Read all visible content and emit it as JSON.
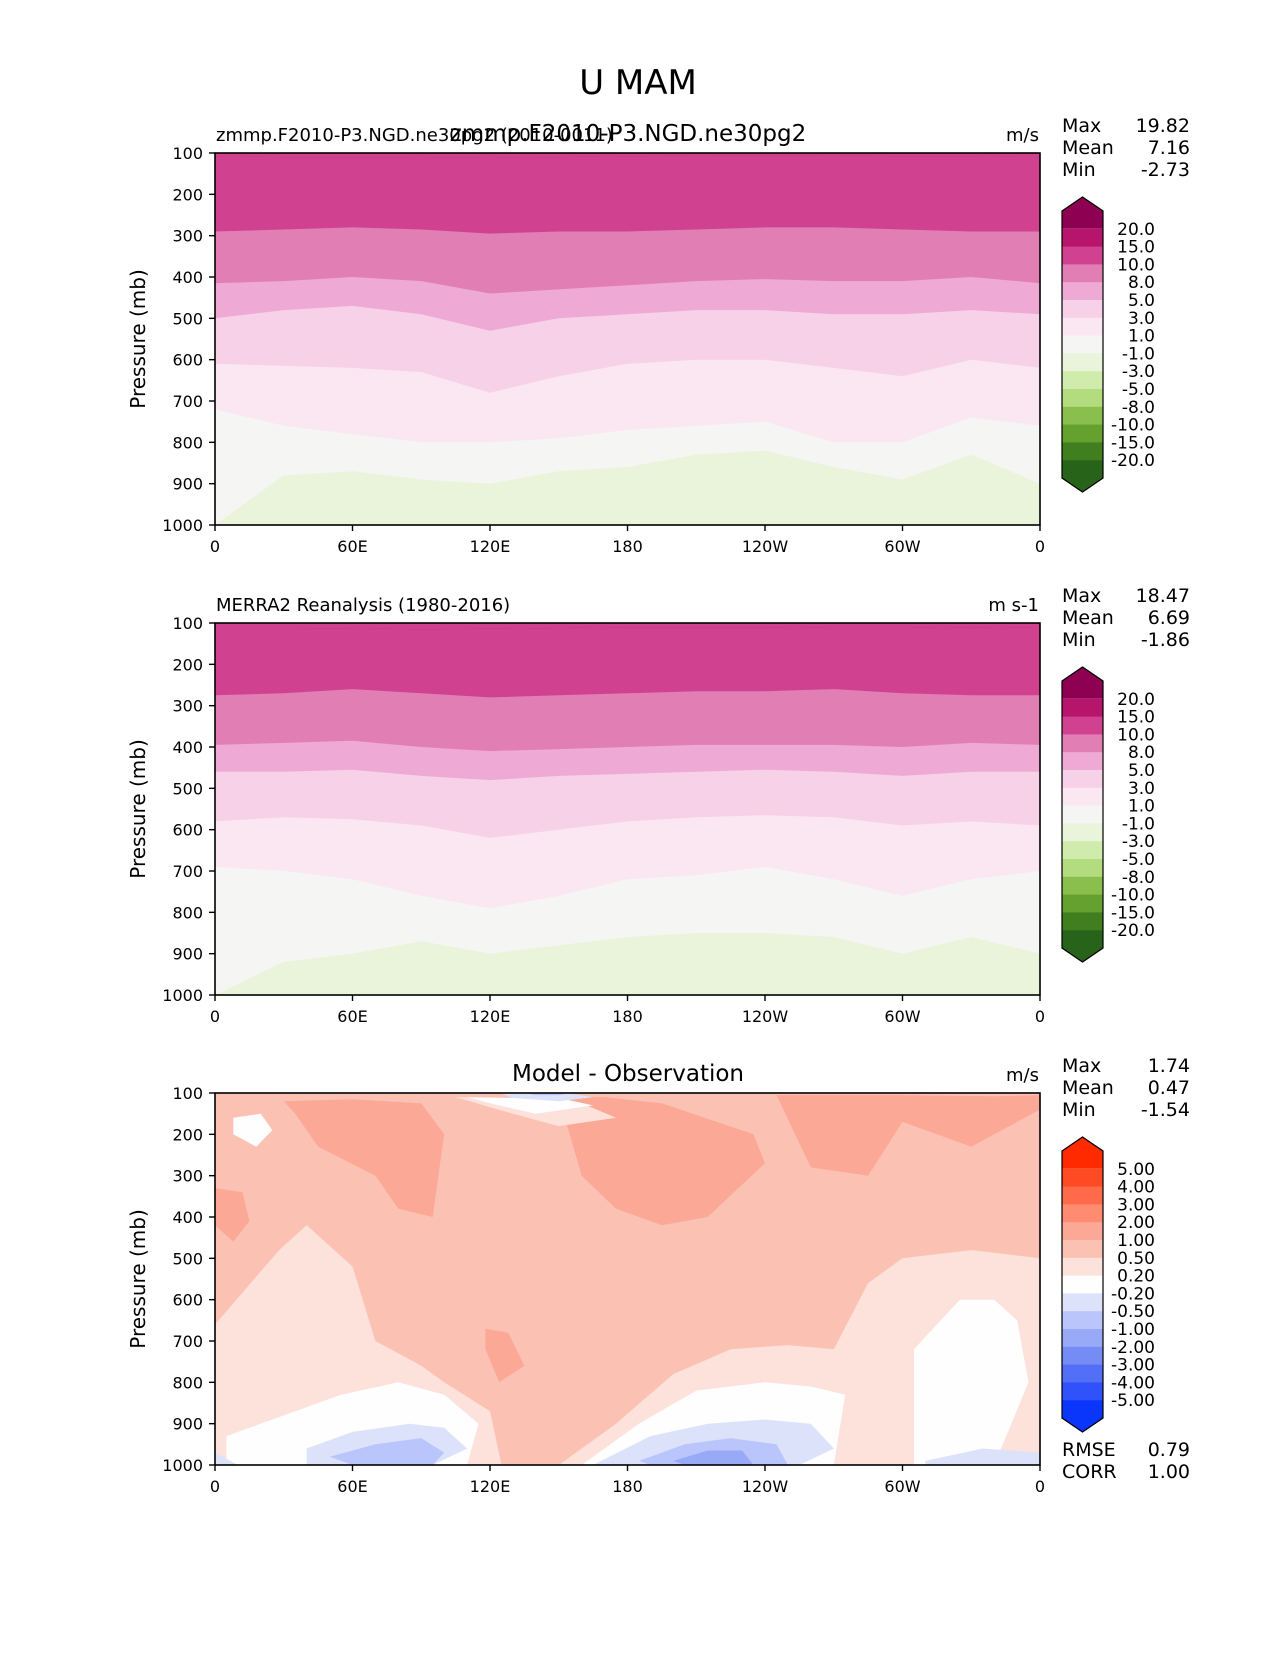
{
  "figure": {
    "title": "U MAM"
  },
  "chart_data": [
    {
      "type": "heatmap",
      "panel": "model",
      "title_left": "zmmp.F2010-P3.NGD.ne30pg2 (2010-0011)",
      "title_center": "zmmp.F2010-P3.NGD.ne30pg2",
      "units": "m/s",
      "ylabel": "Pressure (mb)",
      "xlabel": "",
      "yticks": [
        "100",
        "200",
        "300",
        "400",
        "500",
        "600",
        "700",
        "800",
        "900",
        "1000"
      ],
      "ylim": [
        100,
        1000
      ],
      "xticks": [
        "0",
        "60E",
        "120E",
        "180",
        "120W",
        "60W",
        "0"
      ],
      "xlim": [
        0,
        360
      ],
      "stats": [
        {
          "label": "Max",
          "value": "19.82"
        },
        {
          "label": "Mean",
          "value": "7.16"
        },
        {
          "label": "Min",
          "value": "-2.73"
        }
      ],
      "colorbar": {
        "labels": [
          "20.0",
          "15.0",
          "10.0",
          "8.0",
          "5.0",
          "3.0",
          "1.0",
          "-1.0",
          "-3.0",
          "-5.0",
          "-8.0",
          "-10.0",
          "-15.0",
          "-20.0"
        ],
        "colors": [
          "#8e0152",
          "#b7156c",
          "#d0428f",
          "#e17fb5",
          "#eeaad4",
          "#f7d1e8",
          "#fbe7f1",
          "#f5f5f4",
          "#e9f4db",
          "#d0ecad",
          "#b2dc7d",
          "#8abf4e",
          "#64a12e",
          "#417e1f",
          "#276419"
        ]
      },
      "boundaries": [
        {
          "level": 0,
          "p": [
            108,
            110,
            110,
            111,
            112,
            110,
            108,
            106,
            105,
            106,
            108,
            108,
            110
          ]
        },
        {
          "level": 1,
          "p": [
            290,
            285,
            280,
            285,
            295,
            290,
            290,
            285,
            280,
            280,
            285,
            290,
            290
          ]
        },
        {
          "level": 2,
          "p": [
            415,
            410,
            400,
            410,
            440,
            430,
            420,
            410,
            405,
            410,
            410,
            400,
            415
          ]
        },
        {
          "level": 3,
          "p": [
            500,
            480,
            470,
            490,
            530,
            500,
            490,
            480,
            480,
            490,
            490,
            480,
            490
          ]
        },
        {
          "level": 4,
          "p": [
            610,
            615,
            620,
            630,
            680,
            640,
            610,
            600,
            600,
            620,
            640,
            600,
            620
          ]
        },
        {
          "level": 5,
          "p": [
            720,
            760,
            780,
            800,
            800,
            790,
            770,
            760,
            750,
            800,
            800,
            740,
            760
          ]
        },
        {
          "level": 6,
          "p": [
            1000,
            880,
            870,
            890,
            900,
            870,
            860,
            830,
            820,
            860,
            890,
            830,
            900
          ]
        },
        {
          "level": 7,
          "p": [
            1000,
            1000,
            1000,
            1000,
            1000,
            990,
            940,
            930,
            960,
            1000,
            1000,
            980,
            1000
          ]
        }
      ]
    },
    {
      "type": "heatmap",
      "panel": "obs",
      "title_left": "MERRA2 Reanalysis (1980-2016)",
      "units": "m s-1",
      "ylabel": "Pressure (mb)",
      "yticks": [
        "100",
        "200",
        "300",
        "400",
        "500",
        "600",
        "700",
        "800",
        "900",
        "1000"
      ],
      "ylim": [
        100,
        1000
      ],
      "xticks": [
        "0",
        "60E",
        "120E",
        "180",
        "120W",
        "60W",
        "0"
      ],
      "xlim": [
        0,
        360
      ],
      "stats": [
        {
          "label": "Max",
          "value": "18.47"
        },
        {
          "label": "Mean",
          "value": "6.69"
        },
        {
          "label": "Min",
          "value": "-1.86"
        }
      ],
      "colorbar": {
        "labels": [
          "20.0",
          "15.0",
          "10.0",
          "8.0",
          "5.0",
          "3.0",
          "1.0",
          "-1.0",
          "-3.0",
          "-5.0",
          "-8.0",
          "-10.0",
          "-15.0",
          "-20.0"
        ],
        "colors": [
          "#8e0152",
          "#b7156c",
          "#d0428f",
          "#e17fb5",
          "#eeaad4",
          "#f7d1e8",
          "#fbe7f1",
          "#f5f5f4",
          "#e9f4db",
          "#d0ecad",
          "#b2dc7d",
          "#8abf4e",
          "#64a12e",
          "#417e1f",
          "#276419"
        ]
      },
      "boundaries": [
        {
          "level": 0,
          "p": [
            112,
            112,
            113,
            115,
            114,
            112,
            110,
            110,
            110,
            112,
            112,
            110,
            112
          ]
        },
        {
          "level": 1,
          "p": [
            275,
            270,
            260,
            270,
            280,
            275,
            270,
            265,
            265,
            260,
            270,
            275,
            275
          ]
        },
        {
          "level": 2,
          "p": [
            395,
            390,
            385,
            400,
            410,
            405,
            400,
            395,
            395,
            395,
            400,
            390,
            395
          ]
        },
        {
          "level": 3,
          "p": [
            460,
            460,
            455,
            470,
            480,
            470,
            465,
            460,
            455,
            460,
            470,
            460,
            460
          ]
        },
        {
          "level": 4,
          "p": [
            580,
            570,
            575,
            590,
            620,
            600,
            580,
            570,
            565,
            570,
            590,
            580,
            590
          ]
        },
        {
          "level": 5,
          "p": [
            690,
            700,
            720,
            760,
            790,
            760,
            720,
            710,
            690,
            720,
            760,
            720,
            700
          ]
        },
        {
          "level": 6,
          "p": [
            1000,
            920,
            900,
            870,
            900,
            880,
            860,
            850,
            850,
            860,
            900,
            860,
            900
          ]
        },
        {
          "level": 7,
          "p": [
            1000,
            1000,
            1000,
            1000,
            1000,
            990,
            960,
            950,
            980,
            1000,
            1000,
            990,
            1000
          ]
        }
      ]
    },
    {
      "type": "heatmap",
      "panel": "diff",
      "title_center": "Model - Observation",
      "units": "m/s",
      "ylabel": "Pressure (mb)",
      "yticks": [
        "100",
        "200",
        "300",
        "400",
        "500",
        "600",
        "700",
        "800",
        "900",
        "1000"
      ],
      "ylim": [
        100,
        1000
      ],
      "xticks": [
        "0",
        "60E",
        "120E",
        "180",
        "120W",
        "60W",
        "0"
      ],
      "xlim": [
        0,
        360
      ],
      "stats": [
        {
          "label": "Max",
          "value": "1.74"
        },
        {
          "label": "Mean",
          "value": "0.47"
        },
        {
          "label": "Min",
          "value": "-1.54"
        }
      ],
      "extra_stats": [
        {
          "label": "RMSE",
          "value": "0.79"
        },
        {
          "label": "CORR",
          "value": "1.00"
        }
      ],
      "colorbar": {
        "labels": [
          "5.00",
          "4.00",
          "3.00",
          "2.00",
          "1.00",
          "0.50",
          "0.20",
          "-0.20",
          "-0.50",
          "-1.00",
          "-2.00",
          "-3.00",
          "-4.00",
          "-5.00"
        ],
        "colors": [
          "#ff2a00",
          "#ff4a24",
          "#ff6a4a",
          "#ff8b70",
          "#fca896",
          "#fbc2b4",
          "#fde1db",
          "#fefefe",
          "#dde2fb",
          "#bac6fb",
          "#98a9f8",
          "#758cf5",
          "#536ff8",
          "#3052fa",
          "#0a35fb"
        ]
      },
      "base_color": "#fbc2b4",
      "regions": [
        {
          "color": "#fca896",
          "lon": [
            30,
            60,
            90,
            100,
            95,
            80,
            70,
            45,
            35
          ],
          "p": [
            120,
            115,
            125,
            200,
            400,
            380,
            300,
            230,
            150
          ]
        },
        {
          "color": "#fca896",
          "lon": [
            150,
            170,
            195,
            235,
            240,
            215,
            195,
            175,
            160
          ],
          "p": [
            110,
            110,
            125,
            200,
            270,
            400,
            420,
            380,
            300
          ]
        },
        {
          "color": "#fca896",
          "lon": [
            245,
            300,
            340,
            360,
            360,
            330,
            300,
            285,
            260
          ],
          "p": [
            105,
            105,
            108,
            105,
            140,
            230,
            170,
            300,
            280
          ]
        },
        {
          "color": "#fca896",
          "lon": [
            0,
            12,
            15,
            8,
            0
          ],
          "p": [
            330,
            340,
            410,
            460,
            420
          ]
        },
        {
          "color": "#fca896",
          "lon": [
            118,
            128,
            135,
            124,
            118
          ],
          "p": [
            670,
            680,
            760,
            800,
            720
          ]
        },
        {
          "color": "#fde1db",
          "lon": [
            0,
            28,
            40,
            60,
            70,
            90,
            100,
            120,
            125,
            95,
            60,
            25,
            10,
            0
          ],
          "p": [
            660,
            480,
            420,
            520,
            700,
            760,
            800,
            870,
            1000,
            1000,
            1000,
            1000,
            1000,
            1000
          ]
        },
        {
          "color": "#fde1db",
          "lon": [
            150,
            175,
            200,
            225,
            250,
            270,
            285,
            300,
            330,
            360,
            360,
            300,
            260,
            200,
            150
          ],
          "p": [
            1000,
            900,
            780,
            720,
            710,
            720,
            560,
            500,
            480,
            500,
            1000,
            1000,
            1000,
            1000,
            1000
          ]
        },
        {
          "color": "#fde1db",
          "lon": [
            105,
            130,
            160,
            175,
            150,
            130
          ],
          "p": [
            110,
            112,
            125,
            160,
            180,
            150
          ]
        },
        {
          "color": "#fefefe",
          "lon": [
            5,
            30,
            55,
            80,
            100,
            115,
            110,
            60,
            20,
            5
          ],
          "p": [
            930,
            880,
            830,
            800,
            830,
            900,
            1000,
            1000,
            1000,
            1000
          ]
        },
        {
          "color": "#fefefe",
          "lon": [
            160,
            185,
            210,
            240,
            260,
            275,
            270,
            250,
            200,
            170
          ],
          "p": [
            1000,
            900,
            820,
            800,
            810,
            830,
            1000,
            1000,
            1000,
            1000
          ]
        },
        {
          "color": "#fefefe",
          "lon": [
            305,
            325,
            340,
            350,
            355,
            340,
            320,
            305
          ],
          "p": [
            720,
            600,
            600,
            650,
            800,
            1000,
            1000,
            1000
          ]
        },
        {
          "color": "#fefefe",
          "lon": [
            8,
            20,
            25,
            18,
            8
          ],
          "p": [
            160,
            150,
            190,
            230,
            200
          ]
        },
        {
          "color": "#fefefe",
          "lon": [
            110,
            130,
            150,
            165,
            140,
            120
          ],
          "p": [
            110,
            112,
            112,
            130,
            150,
            125
          ]
        },
        {
          "color": "#dde2fb",
          "lon": [
            125,
            140,
            155,
            165,
            150,
            130
          ],
          "p": [
            102,
            100,
            102,
            110,
            120,
            112
          ]
        },
        {
          "color": "#dde2fb",
          "lon": [
            40,
            60,
            85,
            100,
            110,
            95,
            60,
            40
          ],
          "p": [
            960,
            920,
            900,
            910,
            960,
            1000,
            1000,
            1000
          ]
        },
        {
          "color": "#dde2fb",
          "lon": [
            165,
            190,
            215,
            240,
            260,
            270,
            255,
            230,
            200,
            170
          ],
          "p": [
            1000,
            930,
            900,
            890,
            900,
            960,
            1000,
            1000,
            1000,
            1000
          ]
        },
        {
          "color": "#dde2fb",
          "lon": [
            0,
            10,
            0
          ],
          "p": [
            970,
            1000,
            1000
          ]
        },
        {
          "color": "#dde2fb",
          "lon": [
            310,
            335,
            360,
            360,
            310
          ],
          "p": [
            990,
            960,
            970,
            1000,
            1000
          ]
        },
        {
          "color": "#bac6fb",
          "lon": [
            50,
            70,
            90,
            100,
            95,
            60
          ],
          "p": [
            980,
            950,
            935,
            970,
            1000,
            1000
          ]
        },
        {
          "color": "#bac6fb",
          "lon": [
            185,
            205,
            225,
            245,
            250,
            220,
            190
          ],
          "p": [
            990,
            950,
            935,
            950,
            1000,
            1000,
            1000
          ]
        },
        {
          "color": "#bac6fb",
          "lon": [
            135,
            145,
            155,
            150,
            140
          ],
          "p": [
            100,
            100,
            100,
            105,
            105
          ]
        },
        {
          "color": "#98a9f8",
          "lon": [
            200,
            215,
            230,
            235,
            205
          ],
          "p": [
            990,
            965,
            965,
            1000,
            1000
          ]
        }
      ]
    }
  ]
}
